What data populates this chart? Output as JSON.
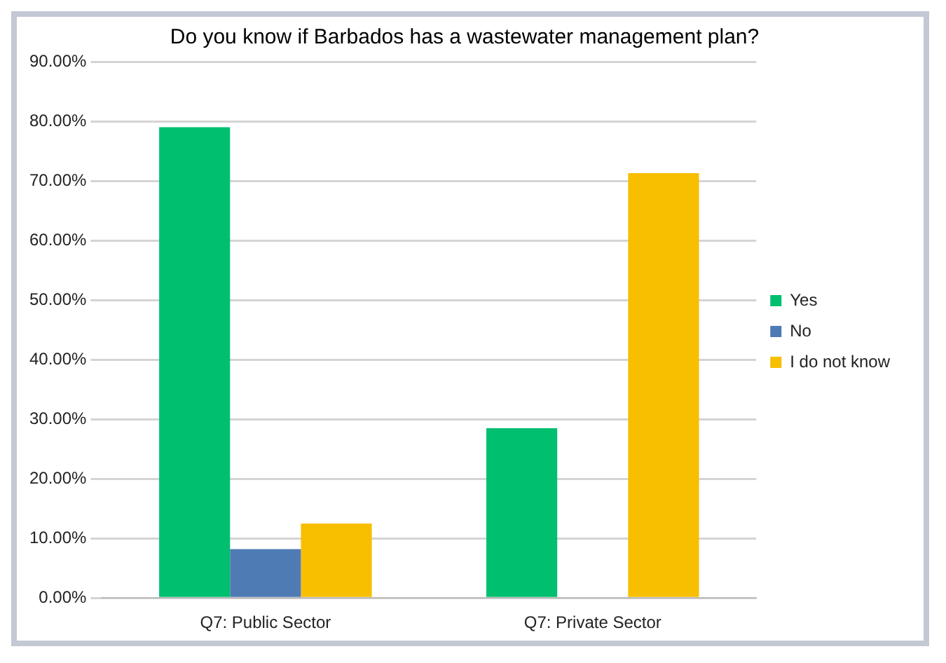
{
  "chart_data": {
    "type": "bar",
    "title": "Do you know if Barbados has a wastewater management plan?",
    "categories": [
      "Q7: Public Sector",
      "Q7: Private Sector"
    ],
    "series": [
      {
        "name": "Yes",
        "color": "#00bf6f",
        "values": [
          79.0,
          28.5
        ]
      },
      {
        "name": "No",
        "color": "#4f7bb5",
        "values": [
          8.2,
          0
        ]
      },
      {
        "name": "I do not know",
        "color": "#f8be00",
        "values": [
          12.5,
          71.3
        ]
      }
    ],
    "ylim": [
      0,
      90
    ],
    "yticks": [
      {
        "value": 0,
        "label": "0.00%"
      },
      {
        "value": 10,
        "label": "10.00%"
      },
      {
        "value": 20,
        "label": "20.00%"
      },
      {
        "value": 30,
        "label": "30.00%"
      },
      {
        "value": 40,
        "label": "40.00%"
      },
      {
        "value": 50,
        "label": "50.00%"
      },
      {
        "value": 60,
        "label": "60.00%"
      },
      {
        "value": 70,
        "label": "70.00%"
      },
      {
        "value": 80,
        "label": "80.00%"
      },
      {
        "value": 90,
        "label": "90.00%"
      }
    ],
    "grid": "y",
    "legend": "right"
  }
}
